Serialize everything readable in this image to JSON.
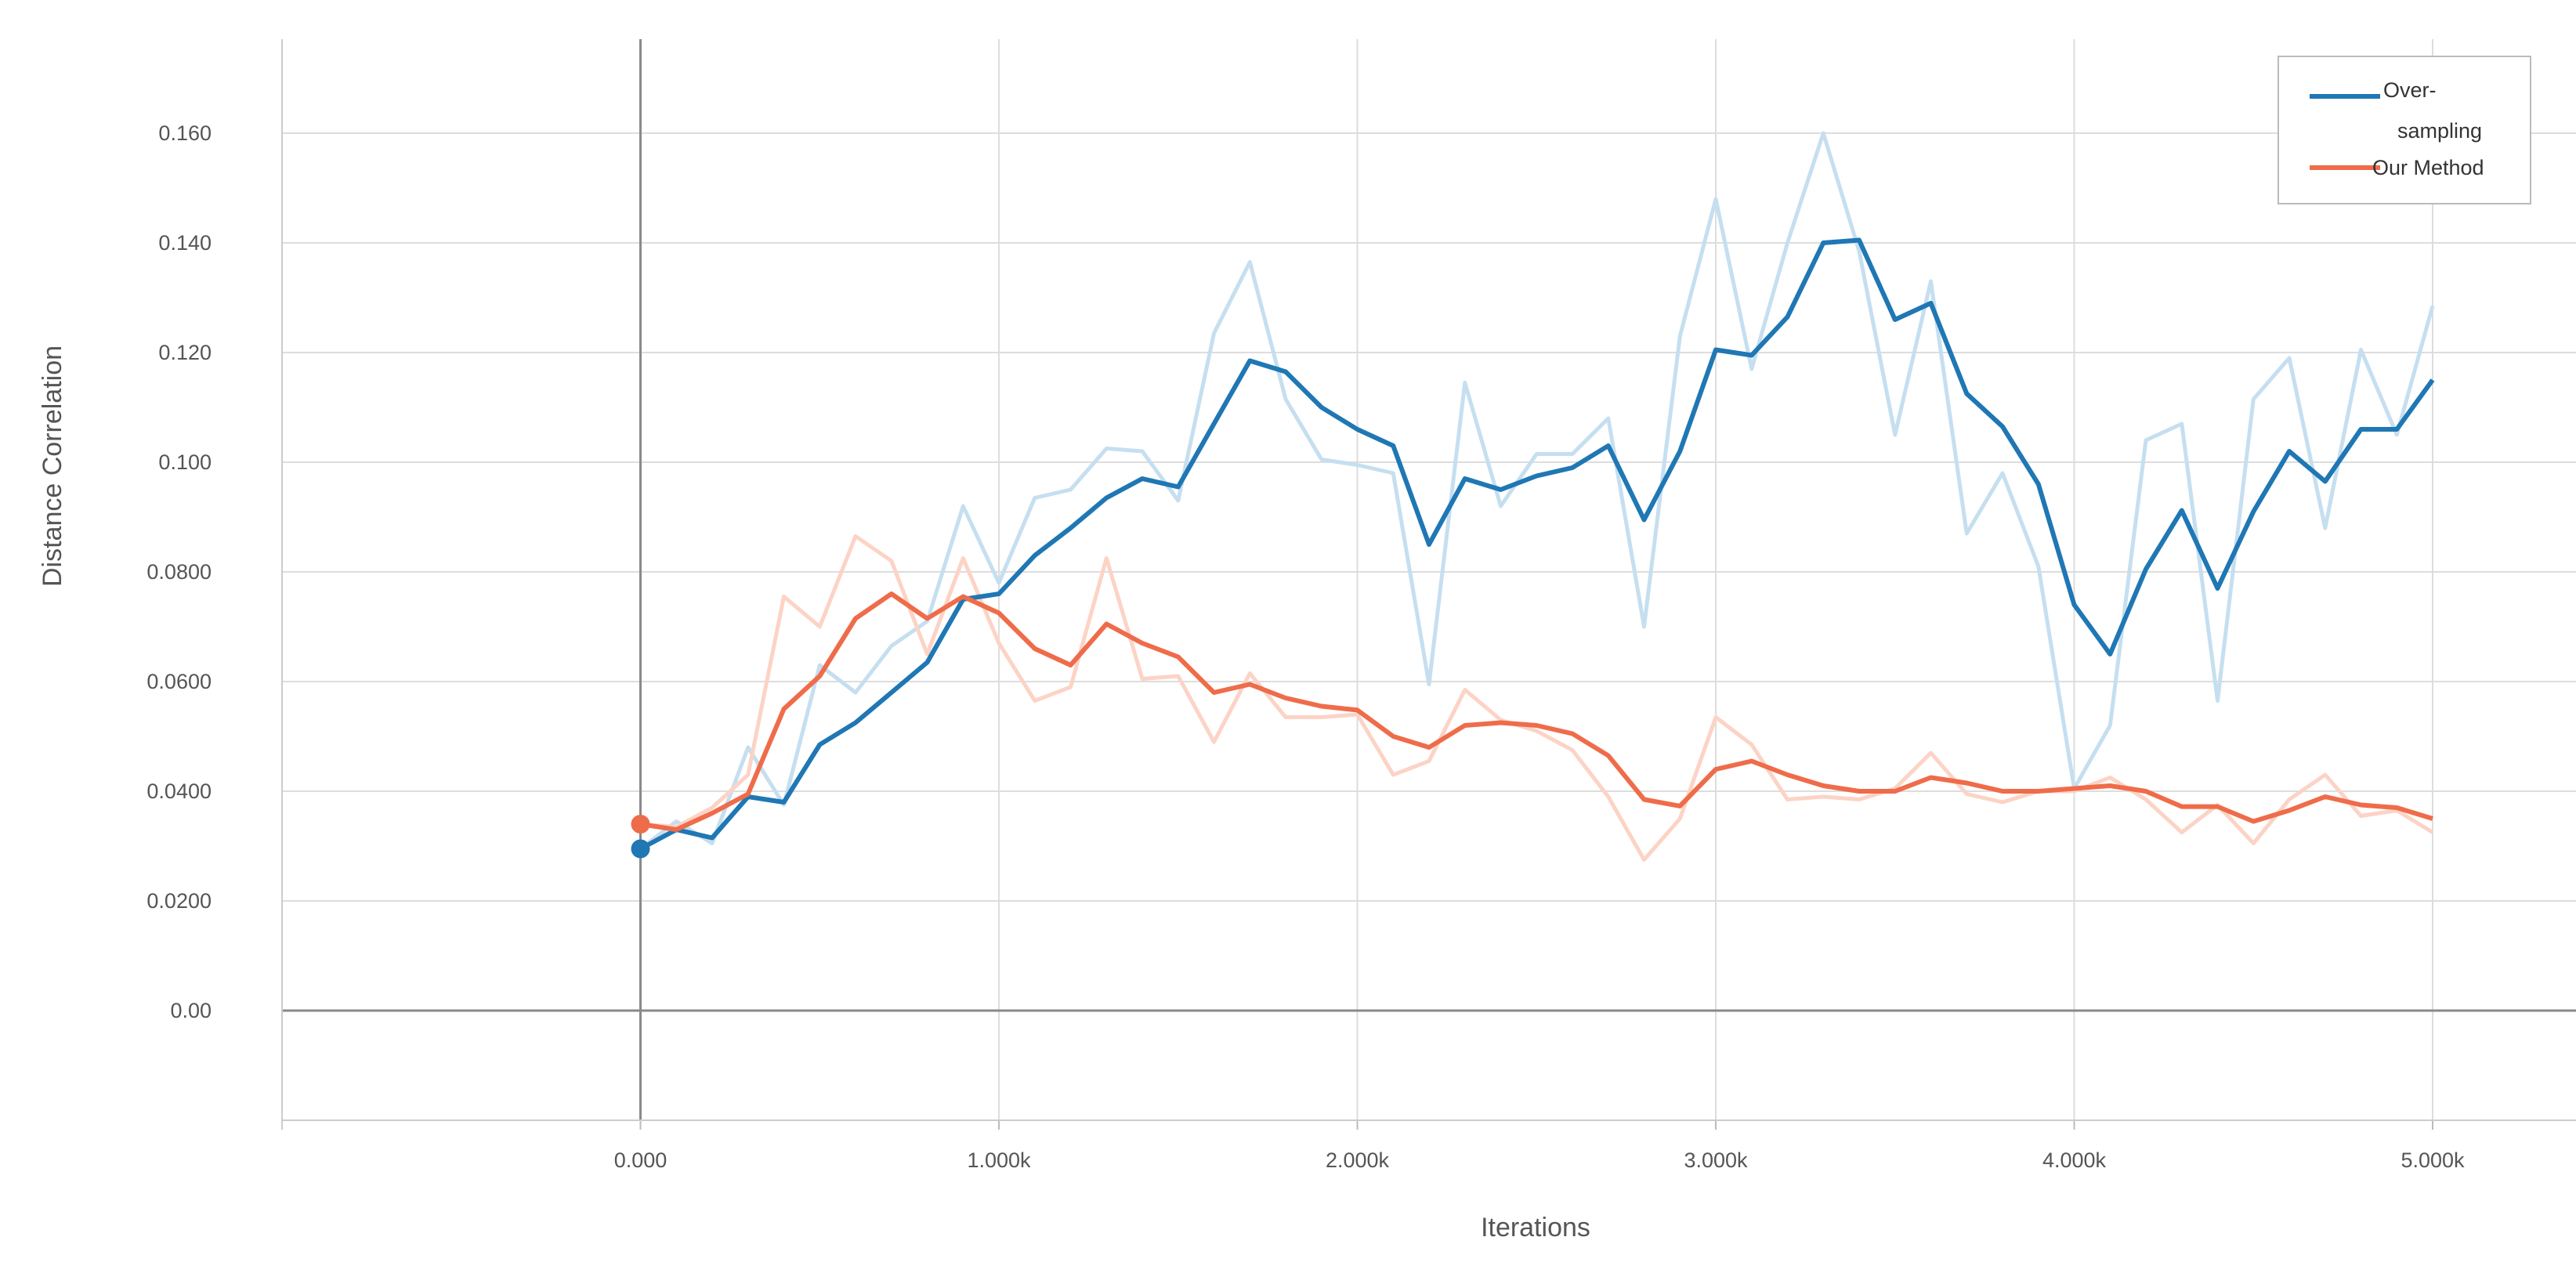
{
  "chart_data": {
    "type": "line",
    "xlabel": "Iterations",
    "ylabel": "Distance Correlation",
    "xlim": [
      -1000,
      5400
    ],
    "ylim": [
      -0.02,
      0.18
    ],
    "x_ticks": [
      0,
      1000,
      2000,
      3000,
      4000,
      5000
    ],
    "x_tick_labels": [
      "0.000",
      "1.000k",
      "2.000k",
      "3.000k",
      "4.000k",
      "5.000k"
    ],
    "y_ticks": [
      0,
      0.02,
      0.04,
      0.06,
      0.08,
      0.1,
      0.12,
      0.14,
      0.16
    ],
    "y_tick_labels": [
      "0.00",
      "0.0200",
      "0.0400",
      "0.0600",
      "0.0800",
      "0.100",
      "0.120",
      "0.140",
      "0.160"
    ],
    "grid": true,
    "legend_position": "top-right",
    "series": [
      {
        "name": "Over-sampling",
        "color": "#1f77b4",
        "raw_color": "#c5dff0",
        "x": [
          0,
          100,
          200,
          300,
          400,
          500,
          600,
          700,
          800,
          900,
          1000,
          1100,
          1200,
          1300,
          1400,
          1500,
          1600,
          1700,
          1800,
          1900,
          2000,
          2100,
          2200,
          2300,
          2400,
          2500,
          2600,
          2700,
          2800,
          2900,
          3000,
          3100,
          3200,
          3300,
          3400,
          3500,
          3600,
          3700,
          3800,
          3900,
          4000,
          4100,
          4200,
          4300,
          4400,
          4500,
          4600,
          4700,
          4800,
          4900,
          5000
        ],
        "smoothed": [
          0.0295,
          0.033,
          0.0315,
          0.039,
          0.038,
          0.0485,
          0.0525,
          0.058,
          0.0635,
          0.075,
          0.076,
          0.083,
          0.088,
          0.0935,
          0.097,
          0.0955,
          0.107,
          0.1185,
          0.1165,
          0.11,
          0.106,
          0.103,
          0.085,
          0.097,
          0.095,
          0.0975,
          0.099,
          0.103,
          0.0895,
          0.102,
          0.1205,
          0.1195,
          0.1265,
          0.14,
          0.1405,
          0.126,
          0.129,
          0.1125,
          0.1065,
          0.096,
          0.074,
          0.065,
          0.0805,
          0.0912,
          0.077,
          0.091,
          0.102,
          0.0965,
          0.106,
          0.106,
          0.115
        ],
        "raw": [
          0.0295,
          0.0345,
          0.0305,
          0.048,
          0.0375,
          0.063,
          0.058,
          0.0665,
          0.071,
          0.092,
          0.078,
          0.0935,
          0.095,
          0.1025,
          0.102,
          0.093,
          0.1235,
          0.1365,
          0.1115,
          0.1005,
          0.0995,
          0.098,
          0.0595,
          0.1145,
          0.092,
          0.1015,
          0.1015,
          0.108,
          0.07,
          0.123,
          0.148,
          0.117,
          0.14,
          0.16,
          0.1385,
          0.105,
          0.133,
          0.087,
          0.098,
          0.081,
          0.0405,
          0.052,
          0.104,
          0.107,
          0.0565,
          0.1115,
          0.119,
          0.088,
          0.1205,
          0.105,
          0.1285
        ]
      },
      {
        "name": "Our Method",
        "color": "#ef6c4a",
        "raw_color": "#fcd3c5",
        "x": [
          0,
          100,
          200,
          300,
          400,
          500,
          600,
          700,
          800,
          900,
          1000,
          1100,
          1200,
          1300,
          1400,
          1500,
          1600,
          1700,
          1800,
          1900,
          2000,
          2100,
          2200,
          2300,
          2400,
          2500,
          2600,
          2700,
          2800,
          2900,
          3000,
          3100,
          3200,
          3300,
          3400,
          3500,
          3600,
          3700,
          3800,
          3900,
          4000,
          4100,
          4200,
          4300,
          4400,
          4500,
          4600,
          4700,
          4800,
          4900,
          5000
        ],
        "smoothed": [
          0.034,
          0.033,
          0.036,
          0.0395,
          0.055,
          0.061,
          0.0715,
          0.076,
          0.0715,
          0.0755,
          0.0725,
          0.066,
          0.063,
          0.0705,
          0.067,
          0.0645,
          0.058,
          0.0595,
          0.057,
          0.0555,
          0.0548,
          0.05,
          0.048,
          0.052,
          0.0525,
          0.052,
          0.0505,
          0.0465,
          0.0385,
          0.0373,
          0.044,
          0.0455,
          0.043,
          0.041,
          0.04,
          0.04,
          0.0425,
          0.0415,
          0.04,
          0.04,
          0.0405,
          0.041,
          0.04,
          0.0372,
          0.0372,
          0.0345,
          0.0365,
          0.039,
          0.0375,
          0.037,
          0.035
        ],
        "raw": [
          0.034,
          0.0335,
          0.037,
          0.043,
          0.0755,
          0.07,
          0.0865,
          0.082,
          0.065,
          0.0825,
          0.067,
          0.0565,
          0.059,
          0.0825,
          0.0605,
          0.061,
          0.049,
          0.0615,
          0.0535,
          0.0535,
          0.054,
          0.043,
          0.0455,
          0.0585,
          0.053,
          0.051,
          0.0475,
          0.039,
          0.0275,
          0.035,
          0.0535,
          0.0485,
          0.0385,
          0.039,
          0.0385,
          0.0405,
          0.047,
          0.0395,
          0.038,
          0.04,
          0.04,
          0.0425,
          0.0385,
          0.0325,
          0.0375,
          0.0305,
          0.0385,
          0.043,
          0.0355,
          0.0365,
          0.0325
        ]
      }
    ]
  }
}
